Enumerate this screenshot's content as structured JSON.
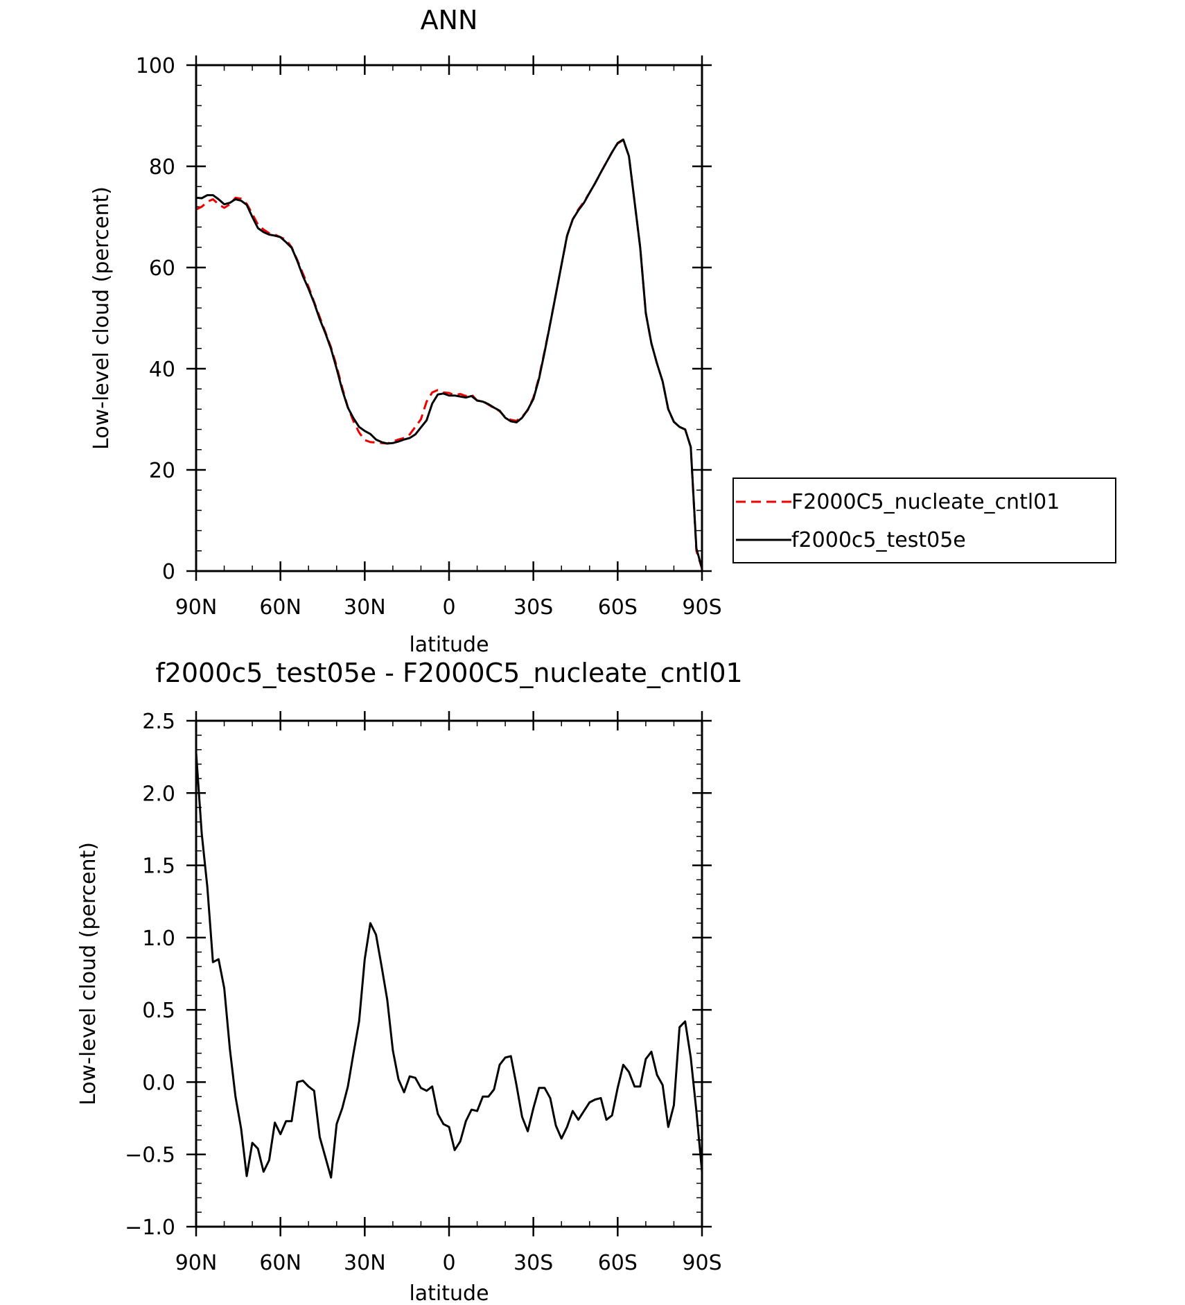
{
  "chart_data": [
    {
      "type": "line",
      "title": "ANN",
      "xlabel": "latitude",
      "ylabel": "Low-level cloud (percent)",
      "xlim": [
        90,
        -90
      ],
      "ylim": [
        0,
        100
      ],
      "x_ticks": [
        90,
        60,
        30,
        0,
        -30,
        -60,
        -90
      ],
      "x_tick_labels": [
        "90N",
        "60N",
        "30N",
        "0",
        "30S",
        "60S",
        "90S"
      ],
      "y_ticks": [
        0,
        20,
        40,
        60,
        80,
        100
      ],
      "y_tick_labels": [
        "0",
        "20",
        "40",
        "60",
        "80",
        "100"
      ],
      "legend_position": "right",
      "x": [
        90,
        88,
        86,
        84,
        82,
        80,
        78,
        76,
        74,
        72,
        70,
        68,
        66,
        64,
        62,
        60,
        58,
        56,
        54,
        52,
        50,
        48,
        46,
        44,
        42,
        40,
        38,
        36,
        34,
        32,
        30,
        28,
        26,
        24,
        22,
        20,
        18,
        16,
        14,
        12,
        10,
        8,
        6,
        4,
        2,
        0,
        -2,
        -4,
        -6,
        -8,
        -10,
        -12,
        -14,
        -16,
        -18,
        -20,
        -22,
        -24,
        -26,
        -28,
        -30,
        -32,
        -34,
        -36,
        -38,
        -40,
        -42,
        -44,
        -46,
        -48,
        -50,
        -52,
        -54,
        -56,
        -58,
        -60,
        -62,
        -64,
        -66,
        -68,
        -70,
        -72,
        -74,
        -76,
        -78,
        -80,
        -82,
        -84,
        -86,
        -88,
        -90
      ],
      "series": [
        {
          "name": "F2000C5_nucleate_cntl01",
          "color": "#ee0000",
          "dash": "dashed",
          "values": [
            71.5,
            72.0,
            73.0,
            73.5,
            72.5,
            71.8,
            72.5,
            73.8,
            73.6,
            72.6,
            70.6,
            68.5,
            67.5,
            66.8,
            66.5,
            66.0,
            65.5,
            64.0,
            61.5,
            58.8,
            56.2,
            53.2,
            50.2,
            47.2,
            44.2,
            40.5,
            36.2,
            32.4,
            29.6,
            27.4,
            25.9,
            25.5,
            25.4,
            25.3,
            25.2,
            25.6,
            26.0,
            26.3,
            27.0,
            28.5,
            30.0,
            33.5,
            35.3,
            35.8,
            35.3,
            35.2,
            34.8,
            35.0,
            34.6,
            34.9,
            33.7,
            33.6,
            32.9,
            32.2,
            31.6,
            30.4,
            29.9,
            29.7,
            30.5,
            31.8,
            34.3,
            38.3,
            43.5,
            49.0,
            54.7,
            60.5,
            66.2,
            69.5,
            71.5,
            73.0,
            74.8,
            76.7,
            78.8,
            80.8,
            82.8,
            84.5,
            85.2,
            82.0,
            73.0,
            64.0,
            51.0,
            45.0,
            41.0,
            37.5,
            32.0,
            29.5,
            28.5,
            28.0,
            24.5,
            4.0,
            0.5
          ]
        },
        {
          "name": "f2000c5_test05e",
          "color": "#000000",
          "dash": "solid",
          "values": [
            73.8,
            73.7,
            74.3,
            74.3,
            73.5,
            72.5,
            72.8,
            73.5,
            73.2,
            72.4,
            70.0,
            67.8,
            67.0,
            66.5,
            66.3,
            66.0,
            65.0,
            63.9,
            61.3,
            58.3,
            55.8,
            53.0,
            49.8,
            47.0,
            43.9,
            40.0,
            35.8,
            32.3,
            30.2,
            28.5,
            27.7,
            27.1,
            26.0,
            25.5,
            25.2,
            25.3,
            25.6,
            26.0,
            26.3,
            27.0,
            28.4,
            29.8,
            33.1,
            34.9,
            35.1,
            34.7,
            34.7,
            34.5,
            34.3,
            34.6,
            33.7,
            33.5,
            33.0,
            32.3,
            31.7,
            30.3,
            29.6,
            29.4,
            30.3,
            31.9,
            34.0,
            38.0,
            43.3,
            48.9,
            54.7,
            60.5,
            66.3,
            69.5,
            71.3,
            72.8,
            74.8,
            76.7,
            78.8,
            80.8,
            82.8,
            84.6,
            85.3,
            82.0,
            73.0,
            64.0,
            51.0,
            45.0,
            41.0,
            37.5,
            32.0,
            29.5,
            28.5,
            28.0,
            24.5,
            4.5,
            0.5
          ]
        }
      ]
    },
    {
      "type": "line",
      "title": "f2000c5_test05e - F2000C5_nucleate_cntl01",
      "xlabel": "latitude",
      "ylabel": "Low-level cloud (percent)",
      "xlim": [
        90,
        -90
      ],
      "ylim": [
        -1.0,
        2.5
      ],
      "x_ticks": [
        90,
        60,
        30,
        0,
        -30,
        -60,
        -90
      ],
      "x_tick_labels": [
        "90N",
        "60N",
        "30N",
        "0",
        "30S",
        "60S",
        "90S"
      ],
      "y_ticks": [
        -1.0,
        -0.5,
        0.0,
        0.5,
        1.0,
        1.5,
        2.0,
        2.5
      ],
      "y_tick_labels": [
        "−1.0",
        "−0.5",
        "0.0",
        "0.5",
        "1.0",
        "1.5",
        "2.0",
        "2.5"
      ],
      "x": [
        90,
        88,
        86,
        84,
        82,
        80,
        78,
        76,
        74,
        72,
        70,
        68,
        66,
        64,
        62,
        60,
        58,
        56,
        54,
        52,
        50,
        48,
        46,
        44,
        42,
        40,
        38,
        36,
        34,
        32,
        30,
        28,
        26,
        24,
        22,
        20,
        18,
        16,
        14,
        12,
        10,
        8,
        6,
        4,
        2,
        0,
        -2,
        -4,
        -6,
        -8,
        -10,
        -12,
        -14,
        -16,
        -18,
        -20,
        -22,
        -24,
        -26,
        -28,
        -30,
        -32,
        -34,
        -36,
        -38,
        -40,
        -42,
        -44,
        -46,
        -48,
        -50,
        -52,
        -54,
        -56,
        -58,
        -60,
        -62,
        -64,
        -66,
        -68,
        -70,
        -72,
        -74,
        -76,
        -78,
        -80,
        -82,
        -84,
        -86,
        -88,
        -90
      ],
      "series": [
        {
          "color": "#000000",
          "dash": "solid",
          "values": [
            2.28,
            1.72,
            1.35,
            0.83,
            0.85,
            0.65,
            0.23,
            -0.1,
            -0.32,
            -0.65,
            -0.42,
            -0.46,
            -0.62,
            -0.54,
            -0.28,
            -0.36,
            -0.27,
            -0.27,
            0.0,
            0.01,
            -0.03,
            -0.06,
            -0.38,
            -0.52,
            -0.66,
            -0.29,
            -0.18,
            -0.03,
            0.2,
            0.42,
            0.85,
            1.1,
            1.02,
            0.8,
            0.57,
            0.22,
            0.02,
            -0.07,
            0.04,
            0.03,
            -0.04,
            -0.06,
            -0.03,
            -0.22,
            -0.29,
            -0.31,
            -0.47,
            -0.41,
            -0.27,
            -0.19,
            -0.2,
            -0.1,
            -0.1,
            -0.05,
            0.12,
            0.17,
            0.18,
            -0.02,
            -0.24,
            -0.34,
            -0.18,
            -0.04,
            -0.04,
            -0.11,
            -0.3,
            -0.39,
            -0.31,
            -0.2,
            -0.26,
            -0.2,
            -0.14,
            -0.12,
            -0.11,
            -0.26,
            -0.23,
            -0.04,
            0.12,
            0.07,
            -0.03,
            -0.03,
            0.16,
            0.21,
            0.05,
            -0.02,
            -0.31,
            -0.16,
            0.38,
            0.42,
            0.17,
            -0.2,
            -0.62
          ]
        }
      ]
    }
  ]
}
